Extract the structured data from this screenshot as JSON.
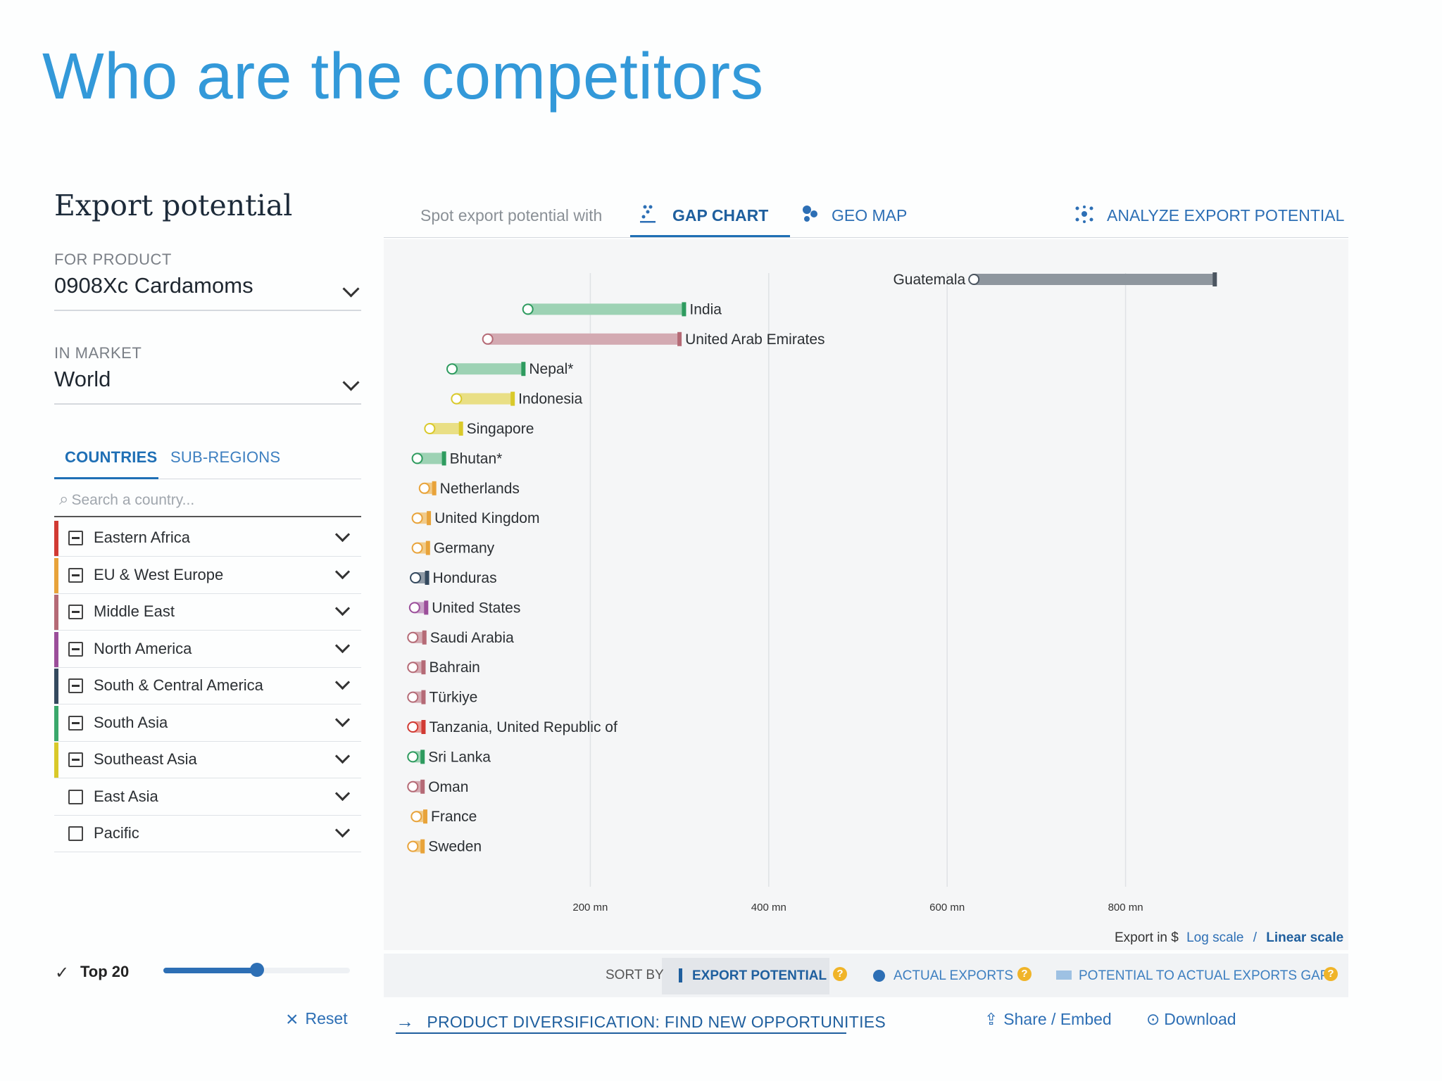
{
  "slide": {
    "title": "Who are the competitors"
  },
  "panel": {
    "title": "Export potential",
    "product_label": "FOR PRODUCT",
    "product_value": "0908Xc Cardamoms",
    "market_label": "IN MARKET",
    "market_value": "World",
    "tabs": [
      "COUNTRIES",
      "SUB-REGIONS"
    ],
    "search_placeholder": "Search a country...",
    "regions": [
      {
        "label": "Eastern Africa",
        "color": "#d13a33",
        "state": "minus"
      },
      {
        "label": "EU & West Europe",
        "color": "#e8a33a",
        "state": "minus"
      },
      {
        "label": "Middle East",
        "color": "#b56a76",
        "state": "minus"
      },
      {
        "label": "North America",
        "color": "#9b4e9a",
        "state": "minus"
      },
      {
        "label": "South & Central America",
        "color": "#34495e",
        "state": "minus"
      },
      {
        "label": "South Asia",
        "color": "#3aa86b",
        "state": "minus"
      },
      {
        "label": "Southeast Asia",
        "color": "#d9c92a",
        "state": "minus"
      },
      {
        "label": "East Asia",
        "color": "#ffffff",
        "state": "empty"
      },
      {
        "label": "Pacific",
        "color": "#ffffff",
        "state": "empty"
      }
    ],
    "top_check": "✓",
    "top_label": "Top 20",
    "top_slider_fraction": 0.5,
    "reset_label": "Reset"
  },
  "nav": {
    "prompt": "Spot export potential with",
    "gap_chart": "GAP CHART",
    "geo_map": "GEO MAP",
    "analyze": "ANALYZE EXPORT POTENTIAL"
  },
  "chart_data": {
    "type": "bar",
    "xlabel": "Export in $",
    "x_ticks": [
      "200 mn",
      "400 mn",
      "600 mn",
      "800 mn"
    ],
    "xlim": [
      0,
      1030
    ],
    "series": [
      {
        "name": "Guatemala",
        "actual": 630,
        "potential": 900,
        "color": "#8e969e",
        "cap": "#4b5560"
      },
      {
        "name": "India",
        "actual": 130,
        "potential": 305,
        "color": "#9dd2b4",
        "cap": "#2e9b5f"
      },
      {
        "name": "United Arab Emirates",
        "actual": 85,
        "potential": 300,
        "color": "#d3aab2",
        "cap": "#b56a76"
      },
      {
        "name": "Nepal*",
        "actual": 45,
        "potential": 125,
        "color": "#9dd2b4",
        "cap": "#2e9b5f"
      },
      {
        "name": "Indonesia",
        "actual": 50,
        "potential": 113,
        "color": "#e9df85",
        "cap": "#d9c92a"
      },
      {
        "name": "Singapore",
        "actual": 20,
        "potential": 55,
        "color": "#e9df85",
        "cap": "#d9c92a"
      },
      {
        "name": "Bhutan*",
        "actual": 6,
        "potential": 36,
        "color": "#9dd2b4",
        "cap": "#2e9b5f"
      },
      {
        "name": "Netherlands",
        "actual": 14,
        "potential": 25,
        "color": "#f1cb8a",
        "cap": "#e8a33a"
      },
      {
        "name": "United Kingdom",
        "actual": 6,
        "potential": 19,
        "color": "#f1cb8a",
        "cap": "#e8a33a"
      },
      {
        "name": "Germany",
        "actual": 6,
        "potential": 18,
        "color": "#f1cb8a",
        "cap": "#e8a33a"
      },
      {
        "name": "Honduras",
        "actual": 4,
        "potential": 17,
        "color": "#8f9aa6",
        "cap": "#34495e"
      },
      {
        "name": "United States",
        "actual": 3,
        "potential": 16,
        "color": "#c9a3c8",
        "cap": "#9b4e9a"
      },
      {
        "name": "Saudi Arabia",
        "actual": 1,
        "potential": 14,
        "color": "#d3aab2",
        "cap": "#b56a76"
      },
      {
        "name": "Bahrain",
        "actual": 1,
        "potential": 13,
        "color": "#d3aab2",
        "cap": "#b56a76"
      },
      {
        "name": "Türkiye",
        "actual": 1,
        "potential": 13,
        "color": "#d3aab2",
        "cap": "#b56a76"
      },
      {
        "name": "Tanzania, United Republic of",
        "actual": 1,
        "potential": 13,
        "color": "#e79a95",
        "cap": "#d13a33"
      },
      {
        "name": "Sri Lanka",
        "actual": 1,
        "potential": 12,
        "color": "#9dd2b4",
        "cap": "#2e9b5f"
      },
      {
        "name": "Oman",
        "actual": 1,
        "potential": 12,
        "color": "#d3aab2",
        "cap": "#b56a76"
      },
      {
        "name": "France",
        "actual": 5,
        "potential": 15,
        "color": "#f1cb8a",
        "cap": "#e8a33a"
      },
      {
        "name": "Sweden",
        "actual": 1,
        "potential": 12,
        "color": "#f1cb8a",
        "cap": "#e8a33a"
      }
    ],
    "scale_options": [
      "Log scale",
      "Linear scale"
    ],
    "selected_scale": "Linear scale"
  },
  "sort": {
    "label": "SORT BY",
    "options": [
      "EXPORT POTENTIAL",
      "ACTUAL EXPORTS",
      "POTENTIAL TO ACTUAL EXPORTS GAP"
    ],
    "selected": "EXPORT POTENTIAL",
    "help": "?"
  },
  "footer": {
    "diversify": "PRODUCT DIVERSIFICATION: FIND NEW OPPORTUNITIES",
    "share": "Share / Embed",
    "download": "Download"
  },
  "icons": {
    "reset": "×",
    "arrow": "→",
    "share": "⇪",
    "download": "⊙",
    "search": "⌕",
    "geo": "●"
  },
  "colors": {
    "accent": "#1f6fb5",
    "title": "#3399d9"
  }
}
